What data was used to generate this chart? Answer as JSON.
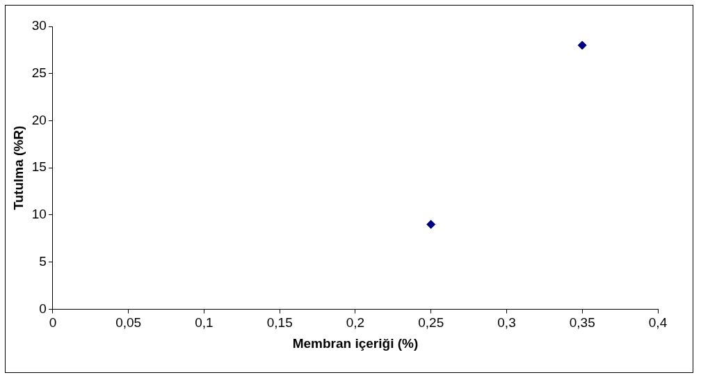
{
  "chart_data": {
    "type": "scatter",
    "xlabel": "Membran içeriği (%)",
    "ylabel": "Tutulma (%R)",
    "x": [
      0.25,
      0.35
    ],
    "series": [
      {
        "color": "#000080",
        "values": [
          9,
          28
        ]
      }
    ],
    "xlim": [
      0,
      0.4
    ],
    "xticks": [
      0,
      {
        "value": 0.05,
        "label": "0,05"
      },
      {
        "value": 0.1,
        "label": "0,1"
      },
      {
        "value": 0.15,
        "label": "0,15"
      },
      {
        "value": 0.2,
        "label": "0,2"
      },
      {
        "value": 0.25,
        "label": "0,25"
      },
      {
        "value": 0.3,
        "label": "0,3"
      },
      {
        "value": 0.35,
        "label": "0,35"
      },
      {
        "value": 0.4,
        "label": "0,4"
      }
    ],
    "ylim": [
      0,
      30
    ],
    "yticks": [
      0,
      5,
      10,
      15,
      20,
      25,
      30
    ],
    "grid": false,
    "legend": false,
    "marker": "diamond"
  }
}
